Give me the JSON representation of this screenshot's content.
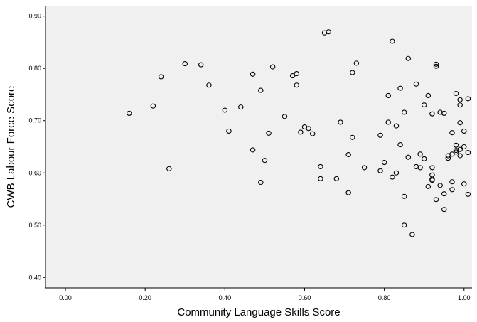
{
  "chart_data": {
    "type": "scatter",
    "title": "",
    "xlabel": "Community Language Skills Score",
    "ylabel": "CWB Labour Force Score",
    "xlim": [
      -0.05,
      1.02
    ],
    "ylim": [
      0.38,
      0.92
    ],
    "xticks": [
      "0.00",
      "0.20",
      "0.40",
      "0.60",
      "0.80",
      "1.00"
    ],
    "yticks": [
      "0.40",
      "0.50",
      "0.60",
      "0.70",
      "0.80",
      "0.90"
    ],
    "grid": false,
    "marker": "open-circle",
    "plot_background": "#f0f0f0",
    "marker_color": "#000000",
    "points": [
      [
        0.16,
        0.714
      ],
      [
        0.22,
        0.728
      ],
      [
        0.24,
        0.784
      ],
      [
        0.26,
        0.608
      ],
      [
        0.3,
        0.809
      ],
      [
        0.34,
        0.807
      ],
      [
        0.36,
        0.768
      ],
      [
        0.4,
        0.72
      ],
      [
        0.41,
        0.68
      ],
      [
        0.44,
        0.726
      ],
      [
        0.47,
        0.644
      ],
      [
        0.47,
        0.789
      ],
      [
        0.49,
        0.758
      ],
      [
        0.49,
        0.582
      ],
      [
        0.5,
        0.624
      ],
      [
        0.51,
        0.676
      ],
      [
        0.52,
        0.803
      ],
      [
        0.55,
        0.708
      ],
      [
        0.57,
        0.786
      ],
      [
        0.58,
        0.768
      ],
      [
        0.58,
        0.79
      ],
      [
        0.59,
        0.678
      ],
      [
        0.6,
        0.688
      ],
      [
        0.61,
        0.685
      ],
      [
        0.62,
        0.675
      ],
      [
        0.64,
        0.589
      ],
      [
        0.64,
        0.612
      ],
      [
        0.65,
        0.868
      ],
      [
        0.66,
        0.87
      ],
      [
        0.68,
        0.589
      ],
      [
        0.69,
        0.697
      ],
      [
        0.71,
        0.562
      ],
      [
        0.71,
        0.635
      ],
      [
        0.72,
        0.668
      ],
      [
        0.72,
        0.792
      ],
      [
        0.73,
        0.81
      ],
      [
        0.75,
        0.61
      ],
      [
        0.79,
        0.604
      ],
      [
        0.79,
        0.672
      ],
      [
        0.8,
        0.62
      ],
      [
        0.81,
        0.697
      ],
      [
        0.81,
        0.748
      ],
      [
        0.82,
        0.592
      ],
      [
        0.82,
        0.852
      ],
      [
        0.83,
        0.69
      ],
      [
        0.83,
        0.6
      ],
      [
        0.84,
        0.762
      ],
      [
        0.84,
        0.654
      ],
      [
        0.85,
        0.716
      ],
      [
        0.85,
        0.555
      ],
      [
        0.85,
        0.5
      ],
      [
        0.86,
        0.819
      ],
      [
        0.86,
        0.63
      ],
      [
        0.87,
        0.482
      ],
      [
        0.88,
        0.77
      ],
      [
        0.88,
        0.612
      ],
      [
        0.89,
        0.61
      ],
      [
        0.89,
        0.636
      ],
      [
        0.9,
        0.627
      ],
      [
        0.9,
        0.73
      ],
      [
        0.91,
        0.748
      ],
      [
        0.91,
        0.574
      ],
      [
        0.92,
        0.61
      ],
      [
        0.92,
        0.713
      ],
      [
        0.92,
        0.596
      ],
      [
        0.92,
        0.588
      ],
      [
        0.92,
        0.586
      ],
      [
        0.93,
        0.808
      ],
      [
        0.93,
        0.804
      ],
      [
        0.93,
        0.549
      ],
      [
        0.94,
        0.576
      ],
      [
        0.94,
        0.716
      ],
      [
        0.95,
        0.714
      ],
      [
        0.95,
        0.53
      ],
      [
        0.95,
        0.56
      ],
      [
        0.96,
        0.628
      ],
      [
        0.96,
        0.633
      ],
      [
        0.97,
        0.677
      ],
      [
        0.97,
        0.636
      ],
      [
        0.97,
        0.568
      ],
      [
        0.97,
        0.583
      ],
      [
        0.98,
        0.752
      ],
      [
        0.98,
        0.653
      ],
      [
        0.98,
        0.64
      ],
      [
        0.98,
        0.643
      ],
      [
        0.99,
        0.74
      ],
      [
        0.99,
        0.73
      ],
      [
        0.99,
        0.696
      ],
      [
        0.99,
        0.645
      ],
      [
        0.99,
        0.633
      ],
      [
        1.0,
        0.65
      ],
      [
        1.0,
        0.68
      ],
      [
        1.0,
        0.579
      ],
      [
        1.01,
        0.559
      ],
      [
        1.01,
        0.742
      ],
      [
        1.01,
        0.639
      ]
    ]
  }
}
